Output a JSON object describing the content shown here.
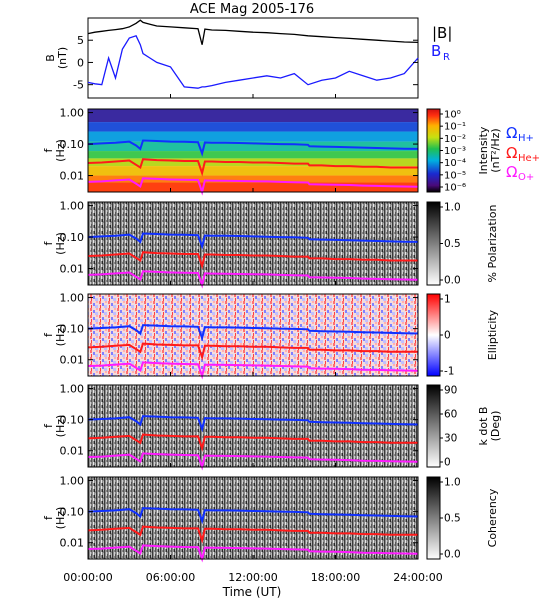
{
  "title": "ACE Mag 2005-176",
  "time_axis": {
    "label": "Time (UT)",
    "ticks": [
      "00:00:00",
      "06:00:00",
      "12:00:00",
      "18:00:00",
      "24:00:00"
    ],
    "range_hours": [
      0,
      24
    ]
  },
  "freq_axis": {
    "label_f": "f",
    "label_unit": "(Hz)",
    "ticks": [
      "1.00",
      "0.10",
      "0.01"
    ],
    "scale": "log",
    "range_hz": [
      0.003,
      1.3
    ]
  },
  "bfield_panel": {
    "ylabel_top": "B",
    "ylabel_unit": "(nT)",
    "yticks": [
      "5",
      "0",
      "-5"
    ],
    "ylim": [
      -8,
      10
    ],
    "legend_B": "|B|",
    "legend_BR_main": "B",
    "legend_BR_sub": "R",
    "color_B": "#000000",
    "color_BR": "#1a1aff"
  },
  "gyro_legend": {
    "omega": "Ω",
    "h_sub": "H+",
    "he_sub": "He+",
    "o_sub": "O+",
    "h_color": "#1030ff",
    "he_color": "#ff1a1a",
    "o_color": "#ff1aff"
  },
  "colorbars": {
    "intensity": {
      "ticks": [
        "10⁰",
        "10⁻¹",
        "10⁻²",
        "10⁻³",
        "10⁻⁴",
        "10⁻⁵",
        "10⁻⁶"
      ],
      "label1": "Intensity",
      "label2": "(nT²/Hz)"
    },
    "polarization": {
      "ticks": [
        "1.0",
        "0.5",
        "0.0"
      ],
      "label": "% Polarization"
    },
    "ellipticity": {
      "ticks": [
        "1",
        "0",
        "-1"
      ],
      "label": "Ellipticity"
    },
    "kdotb": {
      "ticks": [
        "90",
        "60",
        "30",
        "0"
      ],
      "label1": "k dot B",
      "label2": "(Deg)"
    },
    "coherency": {
      "ticks": [
        "1.0",
        "0.5",
        "0.0"
      ],
      "label": "Coherency"
    }
  },
  "chart_data": [
    {
      "type": "line",
      "title": "ACE Mag 2005-176",
      "xlabel": "Time (UT)",
      "ylabel": "B (nT)",
      "ylim": [
        -8,
        10
      ],
      "x_hours": [
        0,
        0.5,
        1,
        1.5,
        2,
        2.5,
        3,
        3.5,
        3.8,
        4,
        4.5,
        5,
        6,
        7,
        8,
        8.3,
        8.5,
        9,
        10,
        11,
        12,
        13,
        14,
        15,
        16,
        17,
        18,
        19,
        20,
        21,
        22,
        23,
        24
      ],
      "series": [
        {
          "name": "|B|",
          "values": [
            6.5,
            6.8,
            7.0,
            7.2,
            7.4,
            7.6,
            8.0,
            8.8,
            9.5,
            9.0,
            8.6,
            8.2,
            8.0,
            7.8,
            7.6,
            4.0,
            7.5,
            7.3,
            7.2,
            7.0,
            6.8,
            6.7,
            6.5,
            6.3,
            6.0,
            5.8,
            5.6,
            5.4,
            5.2,
            5.0,
            4.8,
            4.6,
            4.5
          ]
        },
        {
          "name": "B_R",
          "values": [
            -4.5,
            -4.8,
            -5.0,
            1.0,
            -3.5,
            3.0,
            5.5,
            6.0,
            4.0,
            2.0,
            1.0,
            0.0,
            -1.0,
            -5.5,
            -5.8,
            -5.5,
            -5.5,
            -5.2,
            -4.5,
            -4.0,
            -3.5,
            -3.0,
            -3.5,
            -2.5,
            -5.0,
            -4.0,
            -3.5,
            -2.0,
            -3.0,
            -4.0,
            -3.5,
            -2.5,
            1.0
          ]
        }
      ]
    },
    {
      "type": "heatmap",
      "title": "",
      "xlabel": "Time (UT)",
      "ylabel": "f (Hz)",
      "note": "gyrofrequency lines overlaid on each spectrogram panel",
      "x_hours": [
        0,
        1,
        2,
        3,
        3.5,
        3.8,
        4,
        5,
        6,
        7,
        8,
        8.3,
        8.5,
        9,
        10,
        11,
        12,
        13,
        14,
        15,
        16,
        16.1,
        17,
        18,
        19,
        20,
        21,
        22,
        23,
        24
      ],
      "series": [
        {
          "name": "Ω H+",
          "values": [
            0.1,
            0.105,
            0.11,
            0.12,
            0.09,
            0.07,
            0.13,
            0.125,
            0.12,
            0.118,
            0.115,
            0.05,
            0.112,
            0.11,
            0.11,
            0.108,
            0.105,
            0.103,
            0.1,
            0.098,
            0.095,
            0.085,
            0.083,
            0.081,
            0.079,
            0.077,
            0.075,
            0.073,
            0.071,
            0.07
          ]
        },
        {
          "name": "Ω He+",
          "values": [
            0.025,
            0.026,
            0.028,
            0.03,
            0.022,
            0.018,
            0.033,
            0.031,
            0.03,
            0.029,
            0.029,
            0.012,
            0.028,
            0.028,
            0.027,
            0.027,
            0.026,
            0.026,
            0.025,
            0.024,
            0.024,
            0.021,
            0.021,
            0.02,
            0.02,
            0.019,
            0.019,
            0.018,
            0.018,
            0.018
          ]
        },
        {
          "name": "Ω O+",
          "values": [
            0.0063,
            0.0065,
            0.007,
            0.0075,
            0.0055,
            0.0045,
            0.0082,
            0.0078,
            0.0075,
            0.0073,
            0.0072,
            0.003,
            0.007,
            0.0069,
            0.0068,
            0.0067,
            0.0066,
            0.0065,
            0.0063,
            0.0061,
            0.006,
            0.0053,
            0.0052,
            0.0051,
            0.005,
            0.0048,
            0.0047,
            0.0046,
            0.0045,
            0.0044
          ]
        }
      ]
    }
  ]
}
